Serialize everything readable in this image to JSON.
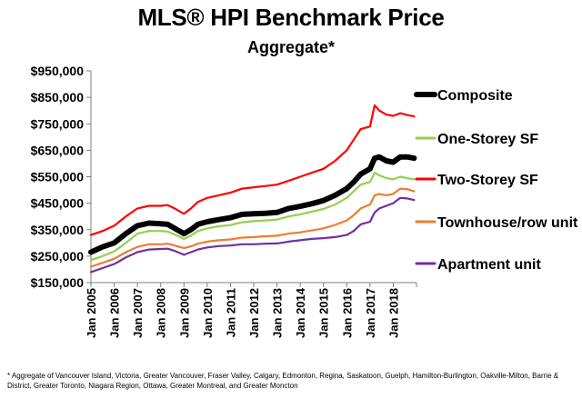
{
  "chart_data": {
    "type": "line",
    "title": "MLS® HPI Benchmark Price",
    "subtitle": "Aggregate*",
    "xlabel": "",
    "ylabel": "",
    "ylim": [
      150000,
      950000
    ],
    "yticks": [
      150000,
      250000,
      350000,
      450000,
      550000,
      650000,
      750000,
      850000,
      950000
    ],
    "ytick_labels": [
      "$150,000",
      "$250,000",
      "$350,000",
      "$450,000",
      "$550,000",
      "$650,000",
      "$750,000",
      "$850,000",
      "$950,000"
    ],
    "xlim": [
      2005.0,
      2019.0
    ],
    "xticks": [
      2005,
      2006,
      2007,
      2008,
      2009,
      2010,
      2011,
      2012,
      2013,
      2014,
      2015,
      2016,
      2017,
      2018
    ],
    "xtick_labels": [
      "Jan 2005",
      "Jan 2006",
      "Jan 2007",
      "Jan 2008",
      "Jan 2009",
      "Jan 2010",
      "Jan 2011",
      "Jan 2012",
      "Jan 2013",
      "Jan 2014",
      "Jan 2015",
      "Jan 2016",
      "Jan 2017",
      "Jan 2018"
    ],
    "legend_position": "right",
    "x": [
      2005.0,
      2005.5,
      2006.0,
      2006.5,
      2007.0,
      2007.5,
      2008.0,
      2008.3,
      2008.6,
      2009.0,
      2009.3,
      2009.6,
      2010.0,
      2010.5,
      2011.0,
      2011.5,
      2012.0,
      2012.5,
      2013.0,
      2013.5,
      2014.0,
      2014.5,
      2015.0,
      2015.5,
      2016.0,
      2016.3,
      2016.6,
      2017.0,
      2017.2,
      2017.4,
      2017.7,
      2018.0,
      2018.3,
      2018.6,
      2018.9
    ],
    "series": [
      {
        "name": "Composite",
        "color": "#000000",
        "width": 6,
        "values": [
          265000,
          285000,
          300000,
          335000,
          365000,
          375000,
          372000,
          370000,
          355000,
          335000,
          350000,
          370000,
          380000,
          388000,
          395000,
          408000,
          410000,
          412000,
          415000,
          430000,
          438000,
          448000,
          460000,
          480000,
          505000,
          530000,
          560000,
          580000,
          620000,
          625000,
          610000,
          605000,
          625000,
          625000,
          620000
        ]
      },
      {
        "name": "One-Storey SF",
        "color": "#92d050",
        "width": 2.2,
        "values": [
          235000,
          250000,
          268000,
          300000,
          335000,
          345000,
          345000,
          343000,
          332000,
          315000,
          328000,
          345000,
          355000,
          363000,
          367000,
          378000,
          382000,
          385000,
          388000,
          400000,
          408000,
          418000,
          428000,
          445000,
          470000,
          495000,
          520000,
          530000,
          565000,
          555000,
          545000,
          540000,
          550000,
          545000,
          540000
        ]
      },
      {
        "name": "Two-Storey SF",
        "color": "#ff0000",
        "width": 2.2,
        "values": [
          330000,
          345000,
          365000,
          400000,
          430000,
          440000,
          440000,
          443000,
          430000,
          410000,
          430000,
          455000,
          470000,
          480000,
          490000,
          505000,
          510000,
          515000,
          520000,
          535000,
          550000,
          565000,
          580000,
          610000,
          650000,
          690000,
          730000,
          740000,
          820000,
          800000,
          785000,
          780000,
          790000,
          783000,
          778000
        ]
      },
      {
        "name": "Townhouse/row unit",
        "color": "#ed7d31",
        "width": 2.2,
        "values": [
          210000,
          225000,
          240000,
          265000,
          285000,
          295000,
          295000,
          297000,
          290000,
          280000,
          287000,
          297000,
          305000,
          310000,
          313000,
          320000,
          322000,
          325000,
          327000,
          335000,
          340000,
          347000,
          355000,
          368000,
          385000,
          405000,
          430000,
          445000,
          480000,
          485000,
          480000,
          485000,
          505000,
          503000,
          495000
        ]
      },
      {
        "name": "Apartment unit",
        "color": "#7030a0",
        "width": 2.2,
        "values": [
          190000,
          205000,
          220000,
          245000,
          265000,
          275000,
          277000,
          278000,
          270000,
          255000,
          265000,
          275000,
          283000,
          288000,
          290000,
          295000,
          295000,
          297000,
          298000,
          305000,
          310000,
          315000,
          318000,
          322000,
          330000,
          345000,
          370000,
          380000,
          415000,
          430000,
          440000,
          450000,
          470000,
          468000,
          462000
        ]
      }
    ],
    "footnote": "* Aggregate of Vancouver Island, Victoria, Greater Vancouver, Fraser Valley, Calgary, Edmonton, Regina, Saskatoon, Guelph, Hamilton-Burlington, Oakville-Milton, Barrie & District, Greater Toronto, Niagara Region, Ottawa, Greater Montreal, and Greater Moncton"
  }
}
